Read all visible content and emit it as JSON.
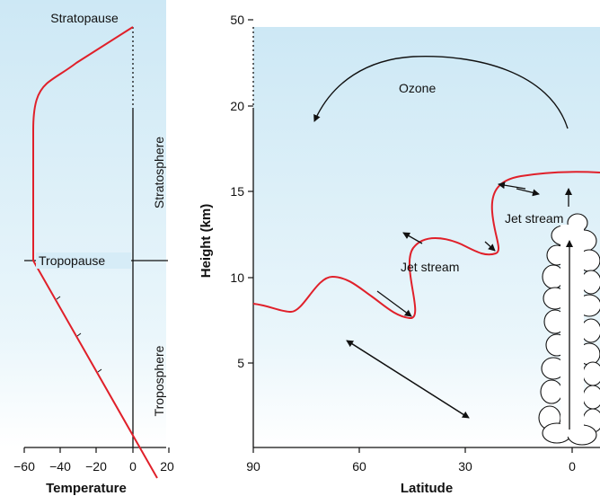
{
  "left_panel": {
    "stratopause_label": "Stratopause",
    "tropopause_label": "Tropopause",
    "stratosphere_label": "Stratosphere",
    "troposphere_label": "Troposphere",
    "x_axis_title": "Temperature",
    "x_ticks": [
      "−60",
      "−40",
      "−20",
      "0",
      "20"
    ]
  },
  "right_panel": {
    "y_axis_title": "Height (km)",
    "x_axis_title": "Latitude",
    "y_ticks": [
      "5",
      "10",
      "15",
      "20",
      "50"
    ],
    "x_ticks": [
      "90",
      "60",
      "30",
      "0"
    ],
    "ozone_label": "Ozone",
    "jet_stream_label_lower": "Jet stream",
    "jet_stream_label_upper": "Jet stream"
  },
  "colors": {
    "curve": "#e0202a",
    "sky_top": "#cfe9f6",
    "sky_bottom": "#ffffff"
  }
}
